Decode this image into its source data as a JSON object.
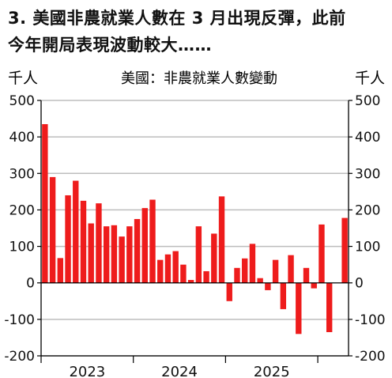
{
  "headline": {
    "line1": "3. 美國非農就業人數在 3 月出現反彈，此前",
    "line2": "今年開局表現波動較大……"
  },
  "colors": {
    "bar": "#ee1c1c",
    "grid": "#bdbdbd",
    "zero_line": "#000000",
    "text": "#111111"
  },
  "chart_data": {
    "type": "bar",
    "title": "美國：非農就業人數變動",
    "y_unit_left": "千人",
    "y_unit_right": "千人",
    "ylim": [
      -200,
      500
    ],
    "yticks": [
      -200,
      -100,
      0,
      100,
      200,
      300,
      400,
      500
    ],
    "grid": true,
    "year_labels": [
      "2023",
      "2024",
      "2025"
    ],
    "year_start_index": [
      0,
      12,
      24
    ],
    "months": [
      "2022-12",
      "2023-01",
      "2023-02",
      "2023-03",
      "2023-04",
      "2023-05",
      "2023-06",
      "2023-07",
      "2023-08",
      "2023-09",
      "2023-10",
      "2023-11",
      "2023-12",
      "2024-01",
      "2024-02",
      "2024-03",
      "2024-04",
      "2024-05",
      "2024-06",
      "2024-07",
      "2024-08",
      "2024-09",
      "2024-10",
      "2024-11",
      "2024-12",
      "2025-01",
      "2025-02",
      "2025-03",
      "2025-04",
      "2025-05",
      "2025-06",
      "2025-07",
      "2025-08",
      "2025-09",
      "2025-10",
      "2025-11",
      "2025-12",
      "2026-01",
      "2026-02",
      "2026-03"
    ],
    "values": [
      435,
      290,
      68,
      240,
      280,
      225,
      163,
      218,
      155,
      158,
      127,
      155,
      175,
      205,
      228,
      63,
      78,
      87,
      50,
      8,
      155,
      32,
      135,
      237,
      -50,
      41,
      67,
      107,
      13,
      -20,
      63,
      -72,
      76,
      -140,
      41,
      -15,
      160,
      -135,
      null,
      178
    ]
  }
}
